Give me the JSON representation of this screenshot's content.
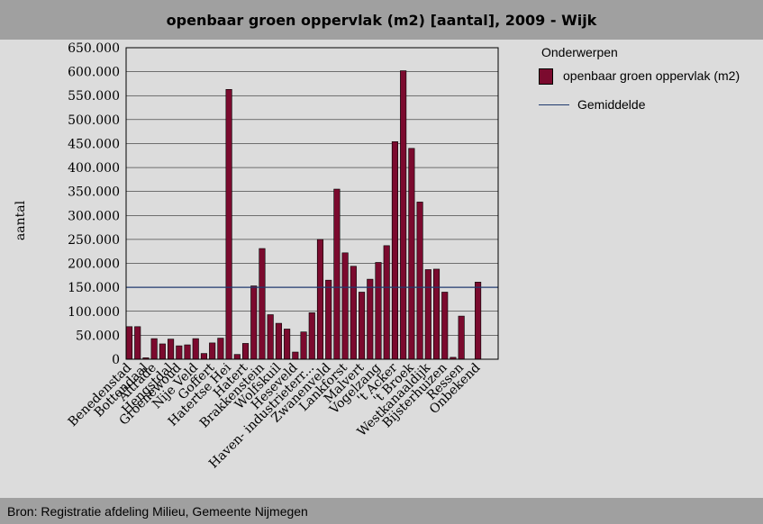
{
  "header": {
    "title": "openbaar groen oppervlak (m2) [aantal], 2009 - Wijk"
  },
  "footer": {
    "source": "Bron: Registratie afdeling Milieu, Gemeente Nijmegen"
  },
  "legend": {
    "title": "Onderwerpen",
    "series_label": "openbaar groen oppervlak (m2)",
    "average_label": "Gemiddelde"
  },
  "colors": {
    "bar": "#7b0a2e",
    "average": "#1f3a6e",
    "plot_bg": "#dcdcdc",
    "header_bg": "#a0a0a0"
  },
  "chart_data": {
    "type": "bar",
    "title": "openbaar groen oppervlak (m2) [aantal], 2009 - Wijk",
    "xlabel": "",
    "ylabel": "aantal",
    "ylim": [
      0,
      650000
    ],
    "yticks": [
      "0",
      "50.000",
      "100.000",
      "150.000",
      "200.000",
      "250.000",
      "300.000",
      "350.000",
      "400.000",
      "450.000",
      "500.000",
      "550.000",
      "600.000",
      "650.000"
    ],
    "grid": true,
    "legend_position": "right",
    "average": 150000,
    "series": [
      {
        "name": "openbaar groen oppervlak (m2)",
        "values": [
          68000,
          68000,
          3000,
          43000,
          32000,
          42000,
          28000,
          30000,
          43000,
          12000,
          34000,
          44000,
          563000,
          10000,
          33000,
          153000,
          231000,
          93000,
          75000,
          63000,
          15000,
          57000,
          97000,
          250000,
          165000,
          355000,
          222000,
          194000,
          140000,
          167000,
          202000,
          237000,
          454000,
          602000,
          440000,
          328000,
          187000,
          188000,
          140000,
          4000,
          90000,
          0,
          161000
        ]
      }
    ],
    "labels": [
      "Benedenstad",
      "",
      "Bottendaal",
      "Altrade",
      "",
      "Hengstdal",
      "Groenewoud",
      "",
      "Nije Veld",
      "",
      "Goffert",
      "",
      "Hatertse Hei",
      "",
      "Hatert",
      "",
      "Brakkenstein",
      "",
      "Wolfskuil",
      "",
      "Heseveld",
      "",
      "Haven- industrieterr...",
      "",
      "Zwanenveld",
      "",
      "Lankforst",
      "",
      "Malvert",
      "",
      "Vogelzang",
      "",
      "'t Acker",
      "",
      "'t Broek",
      "",
      "Westkanaaldijk",
      "",
      "Bijsterhuizen",
      "",
      "Ressen",
      "",
      "Onbekend"
    ]
  }
}
